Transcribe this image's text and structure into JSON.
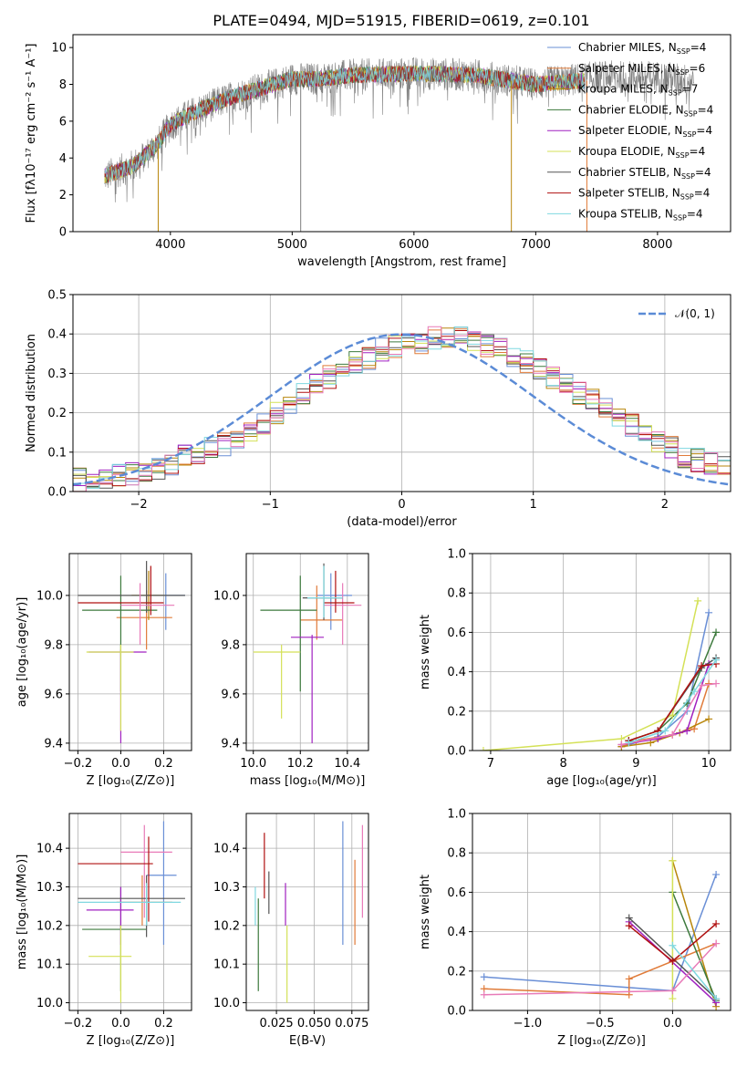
{
  "figure_title": "PLATE=0494, MJD=51915, FIBERID=0619, z=0.101",
  "colors": {
    "Chabrier MILES": "#6a8fd6",
    "Salpeter MILES": "#e07b39",
    "Kroupa MILES": "#b8860b",
    "Chabrier ELODIE": "#3d7a3d",
    "Salpeter ELODIE": "#a020c0",
    "Kroupa ELODIE": "#d4e157",
    "Chabrier STELIB": "#555555",
    "Salpeter STELIB": "#b01010",
    "Kroupa STELIB": "#7fd8e0",
    "data": "#808080",
    "normal": "#5b8bd6",
    "pink": "#e87ab8"
  },
  "legend_spectrum": [
    {
      "pre": "Chabrier MILES, N",
      "sub": "SSP",
      "post": "=4",
      "color": "#6a8fd6"
    },
    {
      "pre": "Salpeter MILES, N",
      "sub": "SSP",
      "post": "=6",
      "color": "#e07b39"
    },
    {
      "pre": "Kroupa MILES, N",
      "sub": "SSP",
      "post": "=7",
      "color": "#b8860b"
    },
    {
      "pre": "Chabrier ELODIE, N",
      "sub": "SSP",
      "post": "=4",
      "color": "#3d7a3d"
    },
    {
      "pre": "Salpeter ELODIE, N",
      "sub": "SSP",
      "post": "=4",
      "color": "#a020c0"
    },
    {
      "pre": "Kroupa ELODIE, N",
      "sub": "SSP",
      "post": "=4",
      "color": "#d4e157"
    },
    {
      "pre": "Chabrier STELIB, N",
      "sub": "SSP",
      "post": "=4",
      "color": "#555555"
    },
    {
      "pre": "Salpeter STELIB, N",
      "sub": "SSP",
      "post": "=4",
      "color": "#b01010"
    },
    {
      "pre": "Kroupa STELIB, N",
      "sub": "SSP",
      "post": "=4",
      "color": "#7fd8e0"
    }
  ],
  "chart_data": [
    {
      "id": "spectrum",
      "type": "line",
      "xlabel": "wavelength [Angstrom, rest frame]",
      "ylabel": "Flux [fλ10⁻¹⁷ erg cm⁻² s⁻¹ A⁻¹]",
      "xlim": [
        3200,
        8600
      ],
      "ylim": [
        0,
        10.7
      ],
      "xticks": [
        4000,
        5000,
        6000,
        7000,
        8000
      ],
      "yticks": [
        0,
        2,
        4,
        6,
        8,
        10
      ],
      "grid": false,
      "legend_position": "upper right",
      "continuum": {
        "x": [
          3460,
          3700,
          3900,
          4000,
          4200,
          4500,
          4800,
          5000,
          5200,
          5500,
          6000,
          6500,
          7000,
          7400
        ],
        "y": [
          3.0,
          3.6,
          4.8,
          5.8,
          6.5,
          7.3,
          7.9,
          8.3,
          8.3,
          8.5,
          8.6,
          8.5,
          8.0,
          8.2
        ]
      },
      "data_continuum": {
        "x": [
          3460,
          3700,
          3900,
          4000,
          4200,
          4500,
          4800,
          5000,
          5200,
          5500,
          6000,
          6500,
          7000,
          7500,
          8000,
          8300
        ],
        "y": [
          3.0,
          3.6,
          4.8,
          5.8,
          6.5,
          7.3,
          7.9,
          8.3,
          8.3,
          8.5,
          8.6,
          8.5,
          8.0,
          8.4,
          8.4,
          8.2
        ]
      },
      "spikes": [
        {
          "x": 3900,
          "ymin": 0,
          "color": "#b8860b"
        },
        {
          "x": 5070,
          "ymin": 0,
          "color": "#808080"
        },
        {
          "x": 6800,
          "ymin": 0,
          "color": "#b8860b"
        },
        {
          "x": 7420,
          "ymin": 0,
          "color": "#e07b39"
        }
      ]
    },
    {
      "id": "residuals",
      "type": "histogram",
      "xlabel": "(data-model)/error",
      "ylabel": "Normed distribution",
      "xlim": [
        -2.5,
        2.5
      ],
      "ylim": [
        0,
        0.5
      ],
      "xticks": [
        -2,
        -1,
        0,
        1,
        2
      ],
      "yticks": [
        0.0,
        0.1,
        0.2,
        0.3,
        0.4,
        0.5
      ],
      "grid": true,
      "legend": "𝒩(0, 1)",
      "legend_position": "upper right",
      "bin_width": 0.1,
      "base_counts": [
        0.03,
        0.03,
        0.035,
        0.04,
        0.045,
        0.05,
        0.06,
        0.07,
        0.09,
        0.1,
        0.11,
        0.12,
        0.13,
        0.15,
        0.17,
        0.2,
        0.22,
        0.25,
        0.27,
        0.29,
        0.3,
        0.33,
        0.34,
        0.36,
        0.37,
        0.38,
        0.38,
        0.39,
        0.39,
        0.39,
        0.38,
        0.37,
        0.36,
        0.34,
        0.33,
        0.31,
        0.29,
        0.27,
        0.25,
        0.23,
        0.21,
        0.19,
        0.17,
        0.15,
        0.13,
        0.11,
        0.09,
        0.08,
        0.07,
        0.06
      ],
      "normal": {
        "mean": 0,
        "sigma": 1
      }
    },
    {
      "id": "age_vs_Z",
      "type": "errorbar",
      "xlabel": "Z [log₁₀(Z/Z⊙)]",
      "ylabel": "age  [log₁₀(age/yr)]",
      "xlim": [
        -0.24,
        0.33
      ],
      "ylim": [
        9.37,
        10.17
      ],
      "xticks": [
        -0.2,
        0.0,
        0.2
      ],
      "yticks": [
        9.4,
        9.6,
        9.8,
        10.0
      ],
      "grid": true,
      "points": [
        {
          "x": 0.21,
          "y": 10.0,
          "xl": 0.12,
          "xh": 0.3,
          "yl": 9.86,
          "yh": 10.09,
          "color": "#6a8fd6"
        },
        {
          "x": 0.12,
          "y": 9.91,
          "xl": -0.02,
          "xh": 0.24,
          "yl": 9.78,
          "yh": 10.02,
          "color": "#e07b39"
        },
        {
          "x": 0.13,
          "y": 10.0,
          "xl": 0.05,
          "xh": 0.2,
          "yl": 9.9,
          "yh": 10.1,
          "color": "#b8860b"
        },
        {
          "x": 0.0,
          "y": 9.94,
          "xl": -0.18,
          "xh": 0.17,
          "yl": 9.61,
          "yh": 10.08,
          "color": "#3d7a3d"
        },
        {
          "x": 0.0,
          "y": 9.77,
          "xl": -0.15,
          "xh": 0.12,
          "yl": 9.4,
          "yh": 9.78,
          "color": "#a020c0"
        },
        {
          "x": 0.0,
          "y": 9.77,
          "xl": -0.16,
          "xh": 0.06,
          "yl": 9.45,
          "yh": 9.8,
          "color": "#d4e157"
        },
        {
          "x": 0.12,
          "y": 10.0,
          "xl": -0.2,
          "xh": 0.3,
          "yl": 9.93,
          "yh": 10.14,
          "color": "#555555"
        },
        {
          "x": 0.14,
          "y": 9.97,
          "xl": -0.2,
          "xh": 0.2,
          "yl": 9.92,
          "yh": 10.12,
          "color": "#b01010"
        },
        {
          "x": 0.09,
          "y": 9.96,
          "xl": 0.0,
          "xh": 0.25,
          "yl": 9.8,
          "yh": 10.05,
          "color": "#e87ab8"
        }
      ]
    },
    {
      "id": "age_vs_mass",
      "type": "errorbar",
      "xlabel": "mass [log₁₀(M/M⊙)]",
      "ylabel": "",
      "xlim": [
        9.97,
        10.49
      ],
      "ylim": [
        9.37,
        10.17
      ],
      "xticks": [
        10.0,
        10.2,
        10.4
      ],
      "yticks": [
        9.4,
        9.6,
        9.8,
        10.0
      ],
      "grid": true,
      "points": [
        {
          "x": 10.33,
          "y": 10.0,
          "xl": 10.27,
          "xh": 10.42,
          "yl": 9.86,
          "yh": 10.09,
          "color": "#6a8fd6"
        },
        {
          "x": 10.27,
          "y": 9.9,
          "xl": 10.2,
          "xh": 10.38,
          "yl": 9.82,
          "yh": 10.04,
          "color": "#e07b39"
        },
        {
          "x": 10.38,
          "y": 9.96,
          "xl": 10.3,
          "xh": 10.46,
          "yl": 9.8,
          "yh": 10.05,
          "color": "#e87ab8"
        },
        {
          "x": 10.2,
          "y": 9.94,
          "xl": 10.03,
          "xh": 10.27,
          "yl": 9.61,
          "yh": 10.08,
          "color": "#3d7a3d"
        },
        {
          "x": 10.25,
          "y": 9.83,
          "xl": 10.16,
          "xh": 10.3,
          "yl": 9.4,
          "yh": 9.84,
          "color": "#a020c0"
        },
        {
          "x": 10.12,
          "y": 9.77,
          "xl": 10.0,
          "xh": 10.2,
          "yl": 9.5,
          "yh": 9.8,
          "color": "#d4e157"
        },
        {
          "x": 10.3,
          "y": 9.99,
          "xl": 10.21,
          "xh": 10.38,
          "yl": 9.9,
          "yh": 10.13,
          "color": "#555555"
        },
        {
          "x": 10.35,
          "y": 9.97,
          "xl": 10.3,
          "xh": 10.43,
          "yl": 9.93,
          "yh": 10.1,
          "color": "#b01010"
        },
        {
          "x": 10.3,
          "y": 9.99,
          "xl": 10.23,
          "xh": 10.38,
          "yl": 9.91,
          "yh": 10.12,
          "color": "#7fd8e0"
        }
      ]
    },
    {
      "id": "massweight_vs_age",
      "type": "line",
      "xlabel": "age  [log₁₀(age/yr)]",
      "ylabel": "mass weight",
      "xlim": [
        6.75,
        10.3
      ],
      "ylim": [
        0,
        1.0
      ],
      "xticks": [
        7,
        8,
        9,
        10
      ],
      "yticks": [
        0.0,
        0.2,
        0.4,
        0.6,
        0.8,
        1.0
      ],
      "grid": true,
      "series": [
        {
          "color": "#6a8fd6",
          "x": [
            8.8,
            9.3,
            9.7,
            10.0
          ],
          "y": [
            0.02,
            0.07,
            0.2,
            0.7
          ]
        },
        {
          "color": "#e07b39",
          "x": [
            8.8,
            9.0,
            9.5,
            9.8,
            10.0
          ],
          "y": [
            0.02,
            0.05,
            0.08,
            0.11,
            0.34
          ]
        },
        {
          "color": "#b8860b",
          "x": [
            8.8,
            9.2,
            9.6,
            10.0
          ],
          "y": [
            0.02,
            0.04,
            0.09,
            0.16
          ]
        },
        {
          "color": "#3d7a3d",
          "x": [
            8.9,
            9.3,
            9.7,
            10.1
          ],
          "y": [
            0.05,
            0.1,
            0.24,
            0.6
          ]
        },
        {
          "color": "#a020c0",
          "x": [
            8.8,
            9.3,
            9.7,
            10.0
          ],
          "y": [
            0.03,
            0.06,
            0.1,
            0.44
          ]
        },
        {
          "color": "#d4e157",
          "x": [
            6.9,
            8.8,
            9.5,
            9.85
          ],
          "y": [
            0.0,
            0.06,
            0.18,
            0.76
          ]
        },
        {
          "color": "#555555",
          "x": [
            8.9,
            9.3,
            9.9,
            10.1
          ],
          "y": [
            0.05,
            0.1,
            0.42,
            0.47
          ]
        },
        {
          "color": "#b01010",
          "x": [
            8.9,
            9.3,
            9.9,
            10.1
          ],
          "y": [
            0.05,
            0.1,
            0.43,
            0.44
          ]
        },
        {
          "color": "#e87ab8",
          "x": [
            8.8,
            9.5,
            9.9,
            10.1
          ],
          "y": [
            0.03,
            0.08,
            0.33,
            0.34
          ]
        },
        {
          "color": "#7fd8e0",
          "x": [
            8.9,
            9.4,
            9.8,
            10.1
          ],
          "y": [
            0.04,
            0.1,
            0.3,
            0.46
          ]
        }
      ]
    },
    {
      "id": "mass_vs_Z",
      "type": "errorbar",
      "xlabel": "Z [log₁₀(Z/Z⊙)]",
      "ylabel": "mass [log₁₀(M/M⊙)]",
      "xlim": [
        -0.24,
        0.33
      ],
      "ylim": [
        9.98,
        10.49
      ],
      "xticks": [
        -0.2,
        0.0,
        0.2
      ],
      "yticks": [
        10.0,
        10.1,
        10.2,
        10.3,
        10.4
      ],
      "grid": true,
      "points": [
        {
          "x": 0.2,
          "y": 10.33,
          "xl": 0.12,
          "xh": 0.26,
          "yl": 10.15,
          "yh": 10.47,
          "color": "#6a8fd6"
        },
        {
          "x": 0.1,
          "y": 10.26,
          "xl": -0.02,
          "xh": 0.24,
          "yl": 10.2,
          "yh": 10.33,
          "color": "#e07b39"
        },
        {
          "x": 0.11,
          "y": 10.39,
          "xl": 0.0,
          "xh": 0.24,
          "yl": 10.22,
          "yh": 10.46,
          "color": "#e87ab8"
        },
        {
          "x": 0.0,
          "y": 10.19,
          "xl": -0.18,
          "xh": 0.12,
          "yl": 10.03,
          "yh": 10.3,
          "color": "#3d7a3d"
        },
        {
          "x": 0.0,
          "y": 10.24,
          "xl": -0.16,
          "xh": 0.06,
          "yl": 10.15,
          "yh": 10.3,
          "color": "#a020c0"
        },
        {
          "x": 0.0,
          "y": 10.12,
          "xl": -0.15,
          "xh": 0.05,
          "yl": 10.0,
          "yh": 10.2,
          "color": "#d4e157"
        },
        {
          "x": 0.12,
          "y": 10.27,
          "xl": -0.2,
          "xh": 0.3,
          "yl": 10.17,
          "yh": 10.33,
          "color": "#555555"
        },
        {
          "x": 0.13,
          "y": 10.36,
          "xl": -0.2,
          "xh": 0.15,
          "yl": 10.21,
          "yh": 10.43,
          "color": "#b01010"
        },
        {
          "x": 0.12,
          "y": 10.26,
          "xl": -0.2,
          "xh": 0.28,
          "yl": 10.2,
          "yh": 10.31,
          "color": "#7fd8e0"
        }
      ]
    },
    {
      "id": "mass_vs_ebv",
      "type": "errorbar",
      "xlabel": "E(B-V)",
      "ylabel": "",
      "xlim": [
        0.005,
        0.086
      ],
      "ylim": [
        9.98,
        10.49
      ],
      "xticks": [
        0.025,
        0.05,
        0.075
      ],
      "xticklabels": [
        "0.025",
        "0.050",
        "0.075"
      ],
      "yticks": [
        10.0,
        10.1,
        10.2,
        10.3,
        10.4
      ],
      "grid": true,
      "points": [
        {
          "x": 0.011,
          "y": 10.25,
          "yl": 10.2,
          "yh": 10.3,
          "color": "#7fd8e0"
        },
        {
          "x": 0.013,
          "y": 10.15,
          "yl": 10.03,
          "yh": 10.27,
          "color": "#3d7a3d"
        },
        {
          "x": 0.017,
          "y": 10.35,
          "yl": 10.27,
          "yh": 10.44,
          "color": "#b01010"
        },
        {
          "x": 0.02,
          "y": 10.3,
          "yl": 10.23,
          "yh": 10.34,
          "color": "#555555"
        },
        {
          "x": 0.031,
          "y": 10.26,
          "yl": 10.2,
          "yh": 10.31,
          "color": "#a020c0"
        },
        {
          "x": 0.032,
          "y": 10.12,
          "yl": 10.0,
          "yh": 10.2,
          "color": "#d4e157"
        },
        {
          "x": 0.069,
          "y": 10.33,
          "yl": 10.15,
          "yh": 10.47,
          "color": "#6a8fd6"
        },
        {
          "x": 0.077,
          "y": 10.27,
          "yl": 10.15,
          "yh": 10.37,
          "color": "#e07b39"
        },
        {
          "x": 0.082,
          "y": 10.35,
          "yl": 10.22,
          "yh": 10.46,
          "color": "#e87ab8"
        }
      ]
    },
    {
      "id": "massweight_vs_Z",
      "type": "line",
      "xlabel": "Z [log₁₀(Z/Z⊙)]",
      "ylabel": "mass weight",
      "xlim": [
        -1.38,
        0.4
      ],
      "ylim": [
        0,
        1.0
      ],
      "xticks": [
        -1.0,
        -0.5,
        0.0
      ],
      "xticklabels": [
        "−1.0",
        "−0.5",
        "0.0"
      ],
      "yticks": [
        0.0,
        0.2,
        0.4,
        0.6,
        0.8,
        1.0
      ],
      "grid": true,
      "series": [
        {
          "color": "#6a8fd6",
          "x": [
            -1.3,
            0.0,
            0.3
          ],
          "y": [
            0.17,
            0.1,
            0.69
          ]
        },
        {
          "color": "#e07b39",
          "x": [
            -1.3,
            -0.3,
            -0.3,
            0.3
          ],
          "y": [
            0.11,
            0.08,
            0.16,
            0.34
          ]
        },
        {
          "color": "#b8860b",
          "x": [
            0.0,
            0.3
          ],
          "y": [
            0.76,
            0.02
          ]
        },
        {
          "color": "#3d7a3d",
          "x": [
            0.0,
            0.3
          ],
          "y": [
            0.6,
            0.05
          ]
        },
        {
          "color": "#a020c0",
          "x": [
            -0.3,
            0.3
          ],
          "y": [
            0.45,
            0.04
          ]
        },
        {
          "color": "#d4e157",
          "x": [
            0.0,
            0.0
          ],
          "y": [
            0.76,
            0.06
          ]
        },
        {
          "color": "#555555",
          "x": [
            -0.3,
            0.3
          ],
          "y": [
            0.47,
            0.06
          ]
        },
        {
          "color": "#b01010",
          "x": [
            -0.3,
            0.0,
            0.3
          ],
          "y": [
            0.43,
            0.25,
            0.44
          ]
        },
        {
          "color": "#e87ab8",
          "x": [
            -1.3,
            0.0,
            0.3
          ],
          "y": [
            0.08,
            0.1,
            0.34
          ]
        },
        {
          "color": "#7fd8e0",
          "x": [
            0.0,
            0.3
          ],
          "y": [
            0.33,
            0.06
          ]
        }
      ]
    }
  ]
}
